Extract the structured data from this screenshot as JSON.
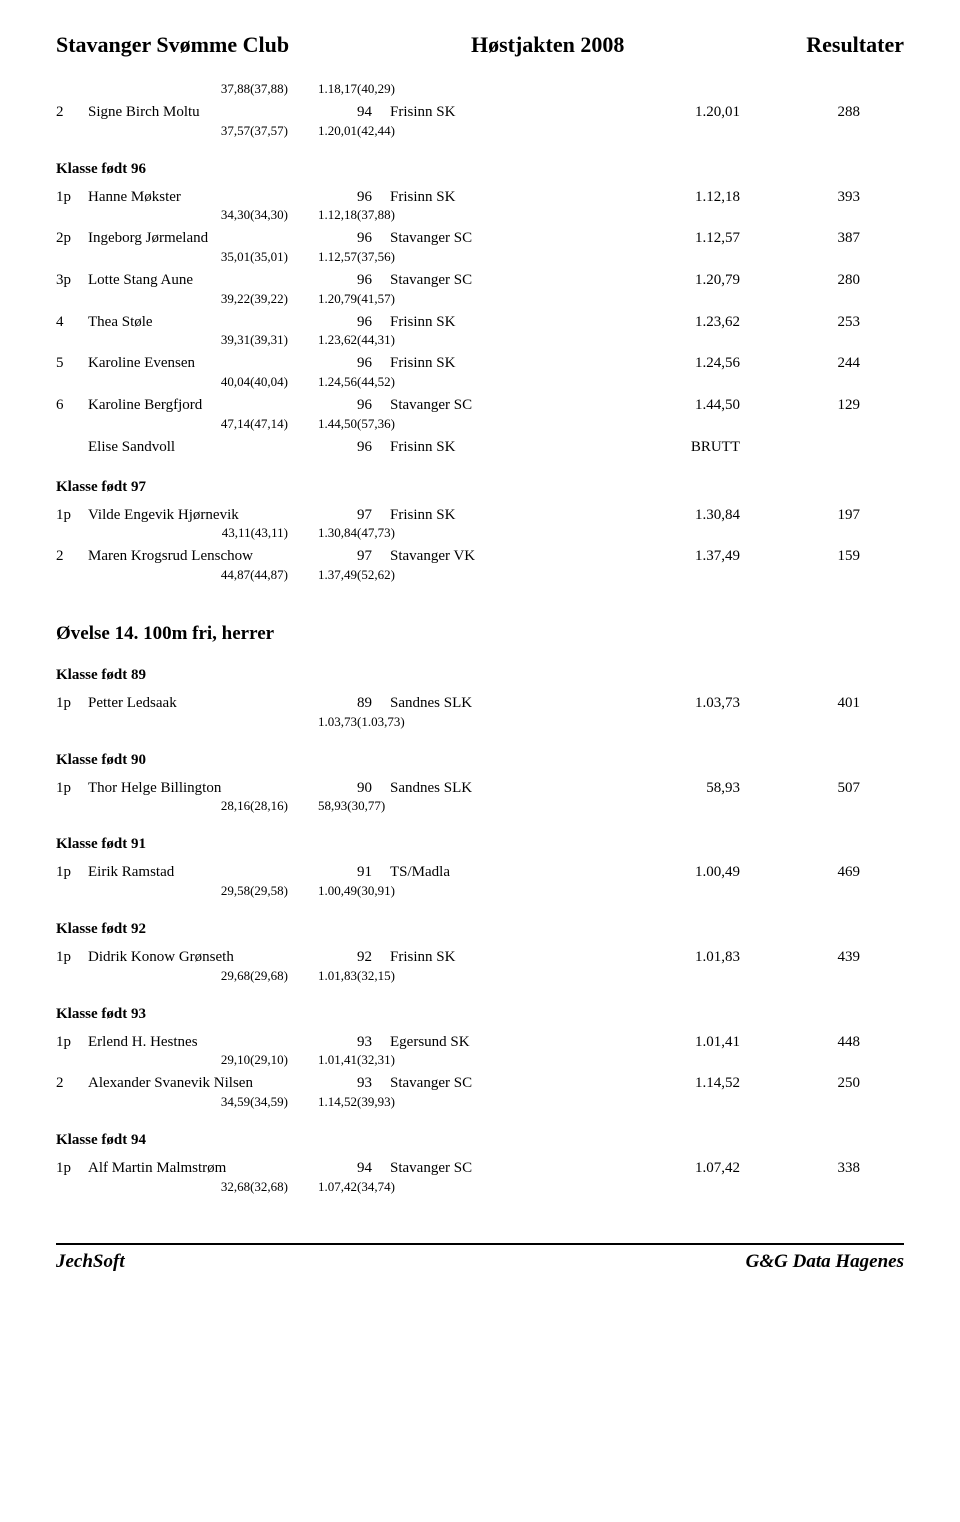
{
  "header": {
    "left": "Stavanger Svømme Club",
    "center": "Høstjakten 2008",
    "right": "Resultater"
  },
  "event_heading": "Øvelse 14. 100m fri, herrer",
  "footer": {
    "left": "JechSoft",
    "right": "G&G Data Hagenes"
  },
  "groups": [
    {
      "heading": null,
      "rows": [
        {
          "place": "",
          "name": "",
          "year": "",
          "club": "",
          "time": "",
          "pts": "",
          "split_l": "37,88(37,88)",
          "split_r": "1.18,17(40,29)"
        },
        {
          "place": "2",
          "name": "Signe Birch Moltu",
          "year": "94",
          "club": "Frisinn SK",
          "time": "1.20,01",
          "pts": "288",
          "split_l": "37,57(37,57)",
          "split_r": "1.20,01(42,44)"
        }
      ]
    },
    {
      "heading": "Klasse født 96",
      "rows": [
        {
          "place": "1p",
          "name": "Hanne Møkster",
          "year": "96",
          "club": "Frisinn SK",
          "time": "1.12,18",
          "pts": "393",
          "split_l": "34,30(34,30)",
          "split_r": "1.12,18(37,88)"
        },
        {
          "place": "2p",
          "name": "Ingeborg Jørmeland",
          "year": "96",
          "club": "Stavanger SC",
          "time": "1.12,57",
          "pts": "387",
          "split_l": "35,01(35,01)",
          "split_r": "1.12,57(37,56)"
        },
        {
          "place": "3p",
          "name": "Lotte Stang Aune",
          "year": "96",
          "club": "Stavanger SC",
          "time": "1.20,79",
          "pts": "280",
          "split_l": "39,22(39,22)",
          "split_r": "1.20,79(41,57)"
        },
        {
          "place": "4",
          "name": "Thea Støle",
          "year": "96",
          "club": "Frisinn SK",
          "time": "1.23,62",
          "pts": "253",
          "split_l": "39,31(39,31)",
          "split_r": "1.23,62(44,31)"
        },
        {
          "place": "5",
          "name": "Karoline Evensen",
          "year": "96",
          "club": "Frisinn SK",
          "time": "1.24,56",
          "pts": "244",
          "split_l": "40,04(40,04)",
          "split_r": "1.24,56(44,52)"
        },
        {
          "place": "6",
          "name": "Karoline Bergfjord",
          "year": "96",
          "club": "Stavanger SC",
          "time": "1.44,50",
          "pts": "129",
          "split_l": "47,14(47,14)",
          "split_r": "1.44,50(57,36)"
        },
        {
          "place": "",
          "name": "Elise Sandvoll",
          "year": "96",
          "club": "Frisinn SK",
          "time": "BRUTT",
          "pts": ""
        }
      ]
    },
    {
      "heading": "Klasse født 97",
      "rows": [
        {
          "place": "1p",
          "name": "Vilde Engevik Hjørnevik",
          "year": "97",
          "club": "Frisinn SK",
          "time": "1.30,84",
          "pts": "197",
          "split_l": "43,11(43,11)",
          "split_r": "1.30,84(47,73)"
        },
        {
          "place": "2",
          "name": "Maren Krogsrud Lenschow",
          "year": "97",
          "club": "Stavanger VK",
          "time": "1.37,49",
          "pts": "159",
          "split_l": "44,87(44,87)",
          "split_r": "1.37,49(52,62)"
        }
      ]
    },
    {
      "heading": "Klasse født 89",
      "rows": [
        {
          "place": "1p",
          "name": "Petter Ledsaak",
          "year": "89",
          "club": "Sandnes SLK",
          "time": "1.03,73",
          "pts": "401",
          "split_l": "",
          "split_r": "1.03,73(1.03,73)"
        }
      ]
    },
    {
      "heading": "Klasse født 90",
      "rows": [
        {
          "place": "1p",
          "name": "Thor Helge Billington",
          "year": "90",
          "club": "Sandnes SLK",
          "time": "58,93",
          "pts": "507",
          "split_l": "28,16(28,16)",
          "split_r": "58,93(30,77)"
        }
      ]
    },
    {
      "heading": "Klasse født 91",
      "rows": [
        {
          "place": "1p",
          "name": "Eirik Ramstad",
          "year": "91",
          "club": "TS/Madla",
          "time": "1.00,49",
          "pts": "469",
          "split_l": "29,58(29,58)",
          "split_r": "1.00,49(30,91)"
        }
      ]
    },
    {
      "heading": "Klasse født 92",
      "rows": [
        {
          "place": "1p",
          "name": "Didrik Konow Grønseth",
          "year": "92",
          "club": "Frisinn SK",
          "time": "1.01,83",
          "pts": "439",
          "split_l": "29,68(29,68)",
          "split_r": "1.01,83(32,15)"
        }
      ]
    },
    {
      "heading": "Klasse født 93",
      "rows": [
        {
          "place": "1p",
          "name": "Erlend H. Hestnes",
          "year": "93",
          "club": "Egersund SK",
          "time": "1.01,41",
          "pts": "448",
          "split_l": "29,10(29,10)",
          "split_r": "1.01,41(32,31)"
        },
        {
          "place": "2",
          "name": "Alexander Svanevik Nilsen",
          "year": "93",
          "club": "Stavanger SC",
          "time": "1.14,52",
          "pts": "250",
          "split_l": "34,59(34,59)",
          "split_r": "1.14,52(39,93)"
        }
      ]
    },
    {
      "heading": "Klasse født 94",
      "rows": [
        {
          "place": "1p",
          "name": "Alf Martin Malmstrøm",
          "year": "94",
          "club": "Stavanger SC",
          "time": "1.07,42",
          "pts": "338",
          "split_l": "32,68(32,68)",
          "split_r": "1.07,42(34,74)"
        }
      ]
    }
  ]
}
